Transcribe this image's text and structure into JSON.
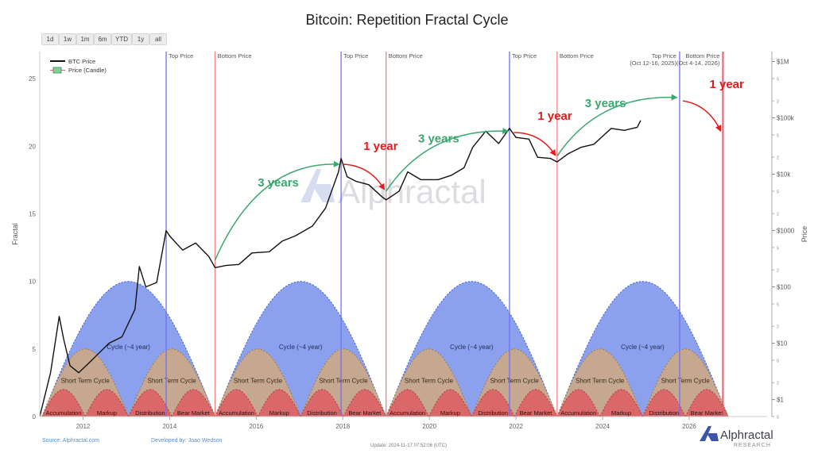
{
  "chart_data": {
    "type": "line",
    "title": "Bitcoin: Repetition Fractal Cycle",
    "ylabel_left": "Fractal",
    "ylabel_right": "Price",
    "left_axis": {
      "ylim": [
        0,
        27
      ],
      "ticks": [
        0,
        5,
        10,
        15,
        20,
        25
      ]
    },
    "right_axis": {
      "scale": "log",
      "ylim": [
        0.5,
        1500000
      ],
      "major_ticks": [
        {
          "value": 1,
          "label": "$1"
        },
        {
          "value": 10,
          "label": "$10"
        },
        {
          "value": 100,
          "label": "$100"
        },
        {
          "value": 1000,
          "label": "$1000"
        },
        {
          "value": 10000,
          "label": "$10k"
        },
        {
          "value": 100000,
          "label": "$100k"
        },
        {
          "value": 1000000,
          "label": "$1M"
        }
      ],
      "minor_ticks": [
        {
          "value": 0.5,
          "label": "5"
        },
        {
          "value": 2,
          "label": "2"
        },
        {
          "value": 5,
          "label": "5"
        },
        {
          "value": 20,
          "label": "2"
        },
        {
          "value": 50,
          "label": "5"
        },
        {
          "value": 200,
          "label": "2"
        },
        {
          "value": 500,
          "label": "5"
        },
        {
          "value": 2000,
          "label": "2"
        },
        {
          "value": 5000,
          "label": "5"
        },
        {
          "value": 20000,
          "label": "2"
        },
        {
          "value": 50000,
          "label": "5"
        },
        {
          "value": 200000,
          "label": "2"
        },
        {
          "value": 500000,
          "label": "5"
        }
      ]
    },
    "x_axis": {
      "xlim": [
        2011.0,
        2027.8
      ],
      "ticks": [
        {
          "value": 2012,
          "label": "2012"
        },
        {
          "value": 2014,
          "label": "2014"
        },
        {
          "value": 2016,
          "label": "2016"
        },
        {
          "value": 2018,
          "label": "2018"
        },
        {
          "value": 2020,
          "label": "2020"
        },
        {
          "value": 2022,
          "label": "2022"
        },
        {
          "value": 2024,
          "label": "2024"
        },
        {
          "value": 2026,
          "label": "2026"
        }
      ]
    },
    "grid": false,
    "legend_position": "top-left",
    "legend": [
      {
        "label": "BTC Price",
        "color": "#111111"
      },
      {
        "label": "Price (Candle)",
        "color": "#2e8b57"
      }
    ],
    "series": [
      {
        "name": "BTC Price",
        "axis": "right",
        "x": [
          2011.0,
          2011.25,
          2011.45,
          2011.55,
          2011.7,
          2011.9,
          2012.2,
          2012.6,
          2012.9,
          2013.2,
          2013.3,
          2013.45,
          2013.7,
          2013.92,
          2014.0,
          2014.3,
          2014.6,
          2014.9,
          2015.05,
          2015.3,
          2015.6,
          2015.9,
          2016.3,
          2016.6,
          2016.9,
          2017.3,
          2017.6,
          2017.9,
          2017.96,
          2018.1,
          2018.3,
          2018.6,
          2018.9,
          2019.0,
          2019.3,
          2019.5,
          2019.8,
          2020.2,
          2020.5,
          2020.8,
          2021.0,
          2021.3,
          2021.6,
          2021.85,
          2022.0,
          2022.3,
          2022.5,
          2022.8,
          2022.95,
          2023.2,
          2023.5,
          2023.8,
          2024.2,
          2024.5,
          2024.8,
          2024.88
        ],
        "y": [
          0.5,
          3,
          30,
          12,
          4,
          3,
          5,
          10,
          13,
          40,
          230,
          100,
          120,
          1000,
          800,
          450,
          600,
          350,
          220,
          240,
          250,
          400,
          420,
          650,
          800,
          1200,
          2500,
          11000,
          19000,
          9000,
          7500,
          6500,
          4000,
          3500,
          5000,
          11000,
          8000,
          8000,
          9500,
          13000,
          30000,
          58000,
          35000,
          65000,
          45000,
          42000,
          20000,
          19000,
          16500,
          23000,
          30000,
          34000,
          65000,
          60000,
          68000,
          90000
        ]
      }
    ],
    "cycle_labels": {
      "long": "Cycle (~4 year)",
      "short": "Short Term Cycle",
      "phases": [
        "Accumulation",
        "Markup",
        "Distribution",
        "Bear Market"
      ]
    },
    "fractal_cycles": [
      {
        "start": 2011.05,
        "end": 2015.05,
        "peak": 10
      },
      {
        "start": 2015.05,
        "end": 2019.0,
        "peak": 10
      },
      {
        "start": 2019.0,
        "end": 2022.95,
        "peak": 10
      },
      {
        "start": 2022.95,
        "end": 2026.9,
        "peak": 10
      }
    ],
    "vertical_markers": [
      {
        "x": 2013.92,
        "label": "Top Price",
        "color": "#6f6ff7"
      },
      {
        "x": 2015.05,
        "label": "Bottom Price",
        "color": "#f08080"
      },
      {
        "x": 2017.96,
        "label": "Top Price",
        "color": "#6f6ff7"
      },
      {
        "x": 2019.0,
        "label": "Bottom Price",
        "color": "#f08080"
      },
      {
        "x": 2021.85,
        "label": "Top Price",
        "color": "#6f6ff7"
      },
      {
        "x": 2022.95,
        "label": "Bottom Price",
        "color": "#f08080"
      },
      {
        "x": 2025.78,
        "label": "Top Price",
        "sublabel": "(Oct 12-16, 2025)",
        "color": "#6f6ff7"
      },
      {
        "x": 2026.78,
        "label": "Bottom Price",
        "sublabel": "(Oct 4-14, 2026)",
        "color": "#e35d6a"
      }
    ],
    "annotations": [
      {
        "text": "3 years",
        "color": "#3aa76d",
        "from": [
          2015.05,
          300
        ],
        "to": [
          2017.9,
          15000
        ]
      },
      {
        "text": "1 year",
        "color": "#e31b1b",
        "from": [
          2018.0,
          15000
        ],
        "to": [
          2018.95,
          5500
        ]
      },
      {
        "text": "3 years",
        "color": "#3aa76d",
        "from": [
          2019.0,
          5000
        ],
        "to": [
          2021.8,
          58000
        ]
      },
      {
        "text": "1 year",
        "color": "#e31b1b",
        "from": [
          2021.95,
          55000
        ],
        "to": [
          2022.9,
          22000
        ]
      },
      {
        "text": "3 years",
        "color": "#3aa76d",
        "from": [
          2022.95,
          21000
        ],
        "to": [
          2025.7,
          230000
        ]
      },
      {
        "text": "1 year",
        "color": "#e31b1b",
        "from": [
          2025.85,
          200000
        ],
        "to": [
          2026.72,
          60000
        ]
      }
    ],
    "colors": {
      "long_cycle": "#6b86e8",
      "short_cycle": "#c8a98a",
      "phase": "#dc6466",
      "price_line": "#111111"
    }
  },
  "range_buttons": [
    "1d",
    "1w",
    "1m",
    "6m",
    "YTD",
    "1y",
    "all"
  ],
  "watermark": "Alphractal",
  "footer": {
    "source": "Source: Alphractal.com",
    "developer": "Developed by: Joao Wedson",
    "update": "Update: 2024-11-17 07:52:06 (UTC)"
  },
  "brand": {
    "name": "Alphractal",
    "sub": "RESEARCH"
  }
}
